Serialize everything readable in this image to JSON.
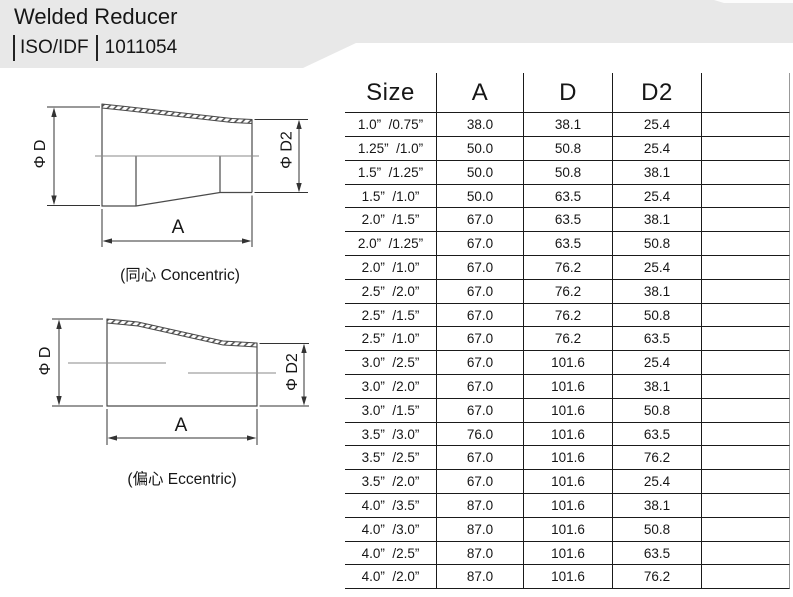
{
  "colors": {
    "header_bg": "#e8e8e8",
    "table_line": "#1a1a1a",
    "table_edge": "#999999",
    "drawing_line": "#4a4a4a",
    "centerline": "#8a8a8a",
    "dim_line": "#333333",
    "text": "#161616"
  },
  "header": {
    "title": "Welded Reducer",
    "standard": "ISO/IDF",
    "code": "1011054"
  },
  "drawings": {
    "concentric": {
      "dim_d": "Φ D",
      "dim_d2": "Φ D2",
      "dim_a": "A",
      "caption": "(同心 Concentric)"
    },
    "eccentric": {
      "dim_d": "Φ D",
      "dim_d2": "Φ D2",
      "dim_a": "A",
      "caption": "(偏心 Eccentric)"
    }
  },
  "table": {
    "columns": [
      "Size",
      "A",
      "D",
      "D2",
      ""
    ],
    "rows": [
      [
        "1.0”  /0.75”",
        "38.0",
        "38.1",
        "25.4"
      ],
      [
        "1.25”  /1.0”",
        "50.0",
        "50.8",
        "25.4"
      ],
      [
        "1.5”  /1.25”",
        "50.0",
        "50.8",
        "38.1"
      ],
      [
        "1.5”  /1.0”",
        "50.0",
        "63.5",
        "25.4"
      ],
      [
        "2.0”  /1.5”",
        "67.0",
        "63.5",
        "38.1"
      ],
      [
        "2.0”  /1.25”",
        "67.0",
        "63.5",
        "50.8"
      ],
      [
        "2.0”  /1.0”",
        "67.0",
        "76.2",
        "25.4"
      ],
      [
        "2.5”  /2.0”",
        "67.0",
        "76.2",
        "38.1"
      ],
      [
        "2.5”  /1.5”",
        "67.0",
        "76.2",
        "50.8"
      ],
      [
        "2.5”  /1.0”",
        "67.0",
        "76.2",
        "63.5"
      ],
      [
        "3.0”  /2.5”",
        "67.0",
        "101.6",
        "25.4"
      ],
      [
        "3.0”  /2.0”",
        "67.0",
        "101.6",
        "38.1"
      ],
      [
        "3.0”  /1.5”",
        "67.0",
        "101.6",
        "50.8"
      ],
      [
        "3.5”  /3.0”",
        "76.0",
        "101.6",
        "63.5"
      ],
      [
        "3.5”  /2.5”",
        "67.0",
        "101.6",
        "76.2"
      ],
      [
        "3.5”  /2.0”",
        "67.0",
        "101.6",
        "25.4"
      ],
      [
        "4.0”  /3.5”",
        "87.0",
        "101.6",
        "38.1"
      ],
      [
        "4.0”  /3.0”",
        "87.0",
        "101.6",
        "50.8"
      ],
      [
        "4.0”  /2.5”",
        "87.0",
        "101.6",
        "63.5"
      ],
      [
        "4.0”  /2.0”",
        "87.0",
        "101.6",
        "76.2"
      ]
    ]
  }
}
